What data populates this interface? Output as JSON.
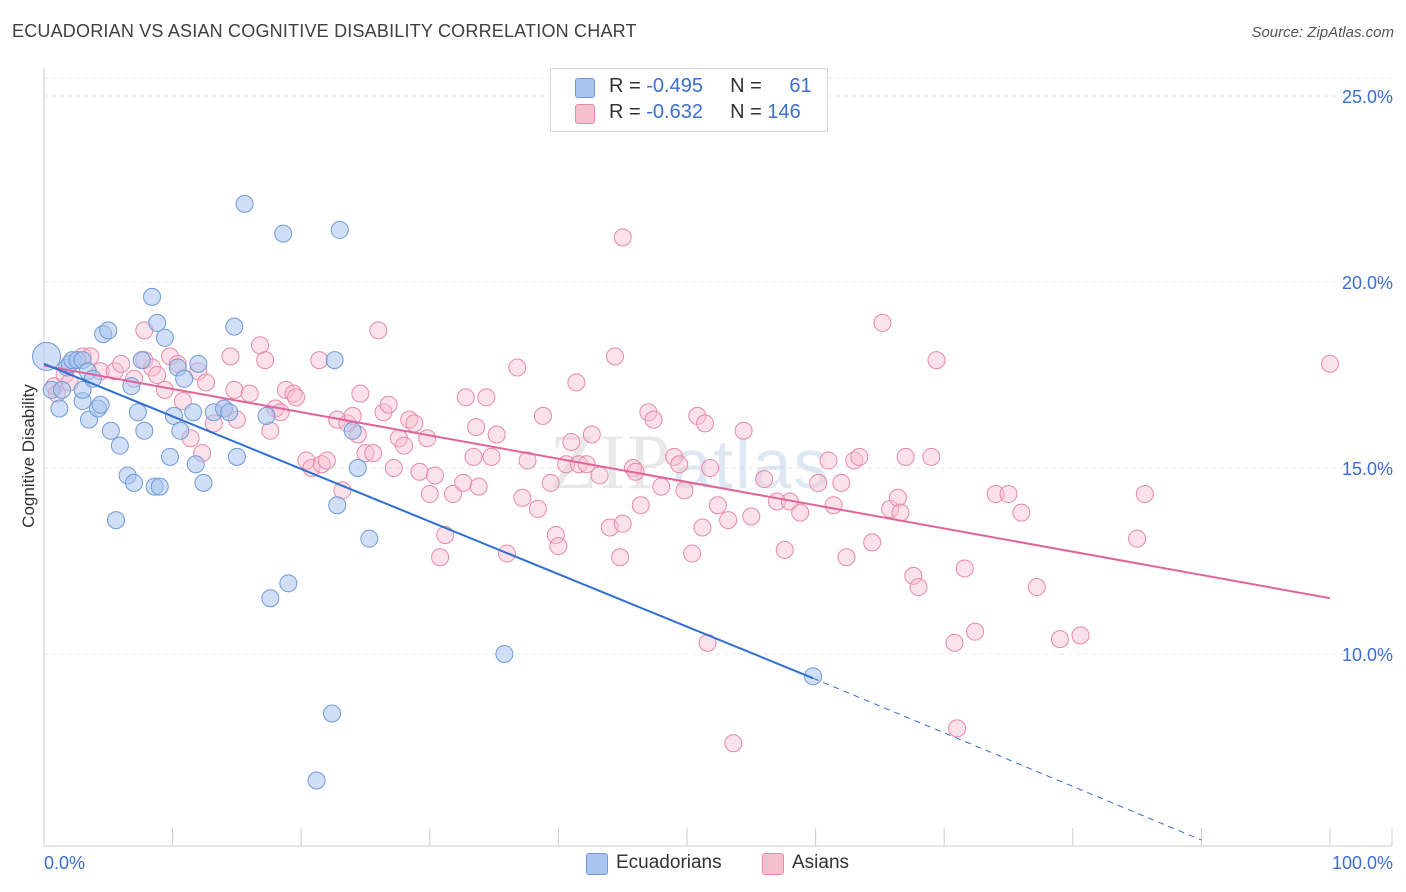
{
  "title": "ECUADORIAN VS ASIAN COGNITIVE DISABILITY CORRELATION CHART",
  "source": "Source: ZipAtlas.com",
  "colors": {
    "blue_fill": "#a9c4ee",
    "blue_stroke": "#6f9ad8",
    "blue_line": "#2f6fd0",
    "pink_fill": "#f6bfd0",
    "pink_stroke": "#e889a8",
    "pink_line": "#e0649a",
    "tick_label": "#3a6fd0",
    "grid": "#e4e4e4"
  },
  "legend": {
    "rows": [
      {
        "r_label": "R = ",
        "r_value": "-0.495",
        "n_label": "N = ",
        "n_value": "61"
      },
      {
        "r_label": "R = ",
        "r_value": "-0.632",
        "n_label": "N = ",
        "n_value": "146"
      }
    ]
  },
  "bottom_legend": [
    "Ecuadorians",
    "Asians"
  ],
  "chart_data": {
    "type": "scatter",
    "title": "ECUADORIAN VS ASIAN COGNITIVE DISABILITY CORRELATION CHART",
    "xlabel": "",
    "ylabel": "Cognitive Disability",
    "xlim": [
      0,
      100
    ],
    "ylim": [
      5.0,
      25.8
    ],
    "x_tick_labels": [
      "0.0%",
      "100.0%"
    ],
    "y_ticks": [
      10,
      15,
      20,
      25
    ],
    "y_tick_labels": [
      "10.0%",
      "15.0%",
      "20.0%",
      "25.0%"
    ],
    "grid": true,
    "legend_position": "top-center",
    "watermark": "ZIPatlas",
    "series": [
      {
        "name": "Ecuadorians",
        "r": -0.495,
        "n": 61,
        "trend": {
          "x0": 0,
          "y0": 17.8,
          "x1": 59.8,
          "y1": 9.35,
          "dashed_to_x": 90,
          "dashed_to_y": 5.0
        },
        "points": [
          [
            0.2,
            18.0
          ],
          [
            0.6,
            17.1
          ],
          [
            1.2,
            16.6
          ],
          [
            1.4,
            17.1
          ],
          [
            1.8,
            17.7
          ],
          [
            2.0,
            17.8
          ],
          [
            2.2,
            17.9
          ],
          [
            2.6,
            17.9
          ],
          [
            3.0,
            16.8
          ],
          [
            3.0,
            17.9
          ],
          [
            3.0,
            17.1
          ],
          [
            3.4,
            17.6
          ],
          [
            3.5,
            16.3
          ],
          [
            3.8,
            17.4
          ],
          [
            4.2,
            16.6
          ],
          [
            4.4,
            16.7
          ],
          [
            4.6,
            18.6
          ],
          [
            5.0,
            18.7
          ],
          [
            5.2,
            16.0
          ],
          [
            5.6,
            13.6
          ],
          [
            5.9,
            15.6
          ],
          [
            6.5,
            14.8
          ],
          [
            6.8,
            17.2
          ],
          [
            7.0,
            14.6
          ],
          [
            7.3,
            16.5
          ],
          [
            7.6,
            17.9
          ],
          [
            7.8,
            16.0
          ],
          [
            8.4,
            19.6
          ],
          [
            8.6,
            14.5
          ],
          [
            8.8,
            18.9
          ],
          [
            9.0,
            14.5
          ],
          [
            9.4,
            18.5
          ],
          [
            9.8,
            15.3
          ],
          [
            10.1,
            16.4
          ],
          [
            10.4,
            17.7
          ],
          [
            10.6,
            16.0
          ],
          [
            10.9,
            17.4
          ],
          [
            11.6,
            16.5
          ],
          [
            11.8,
            15.1
          ],
          [
            12.0,
            17.8
          ],
          [
            12.4,
            14.6
          ],
          [
            13.2,
            16.5
          ],
          [
            14.0,
            16.6
          ],
          [
            14.4,
            16.5
          ],
          [
            14.8,
            18.8
          ],
          [
            15.0,
            15.3
          ],
          [
            15.6,
            22.1
          ],
          [
            17.3,
            16.4
          ],
          [
            17.6,
            11.5
          ],
          [
            18.6,
            21.3
          ],
          [
            19.0,
            11.9
          ],
          [
            21.2,
            6.6
          ],
          [
            22.4,
            8.4
          ],
          [
            22.6,
            17.9
          ],
          [
            22.8,
            14.0
          ],
          [
            23.0,
            21.4
          ],
          [
            24.0,
            16.0
          ],
          [
            24.4,
            15.0
          ],
          [
            25.3,
            13.1
          ],
          [
            35.8,
            10.0
          ],
          [
            59.8,
            9.4
          ]
        ]
      },
      {
        "name": "Asians",
        "r": -0.632,
        "n": 146,
        "trend": {
          "x0": 0,
          "y0": 17.75,
          "x1": 100,
          "y1": 11.5
        },
        "points": [
          [
            0.8,
            17.2
          ],
          [
            1.0,
            17.0
          ],
          [
            1.6,
            17.5
          ],
          [
            2.0,
            17.3
          ],
          [
            3.0,
            18.0
          ],
          [
            3.6,
            18.0
          ],
          [
            4.4,
            17.6
          ],
          [
            5.5,
            17.6
          ],
          [
            6.0,
            17.8
          ],
          [
            7.0,
            17.4
          ],
          [
            7.8,
            17.9
          ],
          [
            7.8,
            18.7
          ],
          [
            8.4,
            17.7
          ],
          [
            8.8,
            17.5
          ],
          [
            9.4,
            17.1
          ],
          [
            9.8,
            18.0
          ],
          [
            10.4,
            17.8
          ],
          [
            10.8,
            16.8
          ],
          [
            11.4,
            15.8
          ],
          [
            12.0,
            17.6
          ],
          [
            12.3,
            15.4
          ],
          [
            12.6,
            17.3
          ],
          [
            13.2,
            16.2
          ],
          [
            14.0,
            16.6
          ],
          [
            14.5,
            18.0
          ],
          [
            14.8,
            17.1
          ],
          [
            15.0,
            16.3
          ],
          [
            16.0,
            17.0
          ],
          [
            16.8,
            18.3
          ],
          [
            17.2,
            17.9
          ],
          [
            17.6,
            16.0
          ],
          [
            18.0,
            16.6
          ],
          [
            18.4,
            16.5
          ],
          [
            18.8,
            17.1
          ],
          [
            19.4,
            17.0
          ],
          [
            19.6,
            16.9
          ],
          [
            20.4,
            15.2
          ],
          [
            20.8,
            15.0
          ],
          [
            21.4,
            17.9
          ],
          [
            21.6,
            15.1
          ],
          [
            22.0,
            15.2
          ],
          [
            22.8,
            16.3
          ],
          [
            23.2,
            14.4
          ],
          [
            23.6,
            16.2
          ],
          [
            24.0,
            16.4
          ],
          [
            24.4,
            15.9
          ],
          [
            24.6,
            17.0
          ],
          [
            25.0,
            15.4
          ],
          [
            25.6,
            15.4
          ],
          [
            26.0,
            18.7
          ],
          [
            26.4,
            16.5
          ],
          [
            26.8,
            16.7
          ],
          [
            27.2,
            15.0
          ],
          [
            27.6,
            15.8
          ],
          [
            28.0,
            15.6
          ],
          [
            28.4,
            16.3
          ],
          [
            28.8,
            16.2
          ],
          [
            29.2,
            14.9
          ],
          [
            29.8,
            15.8
          ],
          [
            30.0,
            14.3
          ],
          [
            30.4,
            14.8
          ],
          [
            30.8,
            12.6
          ],
          [
            31.2,
            13.2
          ],
          [
            31.8,
            14.3
          ],
          [
            32.6,
            14.6
          ],
          [
            32.8,
            16.9
          ],
          [
            33.4,
            15.3
          ],
          [
            33.6,
            16.1
          ],
          [
            33.8,
            14.5
          ],
          [
            34.4,
            16.9
          ],
          [
            34.8,
            15.3
          ],
          [
            35.2,
            15.9
          ],
          [
            36.0,
            12.7
          ],
          [
            36.8,
            17.7
          ],
          [
            37.2,
            14.2
          ],
          [
            37.6,
            15.2
          ],
          [
            38.4,
            13.9
          ],
          [
            38.8,
            16.4
          ],
          [
            39.4,
            14.6
          ],
          [
            39.8,
            13.2
          ],
          [
            40.0,
            12.9
          ],
          [
            40.6,
            15.1
          ],
          [
            41.0,
            15.7
          ],
          [
            41.4,
            17.3
          ],
          [
            41.6,
            15.1
          ],
          [
            42.2,
            15.1
          ],
          [
            42.6,
            15.9
          ],
          [
            43.2,
            14.8
          ],
          [
            44.0,
            13.4
          ],
          [
            44.4,
            18.0
          ],
          [
            44.8,
            12.6
          ],
          [
            45.0,
            13.5
          ],
          [
            45.8,
            15.0
          ],
          [
            46.0,
            14.9
          ],
          [
            46.4,
            14.0
          ],
          [
            47.0,
            16.5
          ],
          [
            47.4,
            16.3
          ],
          [
            48.0,
            14.5
          ],
          [
            49.0,
            15.3
          ],
          [
            49.4,
            15.1
          ],
          [
            49.8,
            14.4
          ],
          [
            50.4,
            12.7
          ],
          [
            50.8,
            16.4
          ],
          [
            51.2,
            13.4
          ],
          [
            51.4,
            16.2
          ],
          [
            51.6,
            10.3
          ],
          [
            51.8,
            15.0
          ],
          [
            52.4,
            14.0
          ],
          [
            53.2,
            13.6
          ],
          [
            53.6,
            7.6
          ],
          [
            54.4,
            16.0
          ],
          [
            55.0,
            13.7
          ],
          [
            56.0,
            14.7
          ],
          [
            57.0,
            14.1
          ],
          [
            57.6,
            12.8
          ],
          [
            58.0,
            14.1
          ],
          [
            58.8,
            13.8
          ],
          [
            60.2,
            14.6
          ],
          [
            61.0,
            15.2
          ],
          [
            61.4,
            14.0
          ],
          [
            62.0,
            14.6
          ],
          [
            62.4,
            12.6
          ],
          [
            63.0,
            15.2
          ],
          [
            63.4,
            15.3
          ],
          [
            64.4,
            13.0
          ],
          [
            65.2,
            18.9
          ],
          [
            65.8,
            13.9
          ],
          [
            66.4,
            14.2
          ],
          [
            66.6,
            13.8
          ],
          [
            67.0,
            15.3
          ],
          [
            67.6,
            12.1
          ],
          [
            68.0,
            11.8
          ],
          [
            69.0,
            15.3
          ],
          [
            69.4,
            17.9
          ],
          [
            70.8,
            10.3
          ],
          [
            71.0,
            8.0
          ],
          [
            71.6,
            12.3
          ],
          [
            72.4,
            10.6
          ],
          [
            74.0,
            14.3
          ],
          [
            75.0,
            14.3
          ],
          [
            76.0,
            13.8
          ],
          [
            77.2,
            11.8
          ],
          [
            79.0,
            10.4
          ],
          [
            80.6,
            10.5
          ],
          [
            85.0,
            13.1
          ],
          [
            85.6,
            14.3
          ],
          [
            100.0,
            17.8
          ],
          [
            45.0,
            21.2
          ]
        ]
      }
    ]
  }
}
